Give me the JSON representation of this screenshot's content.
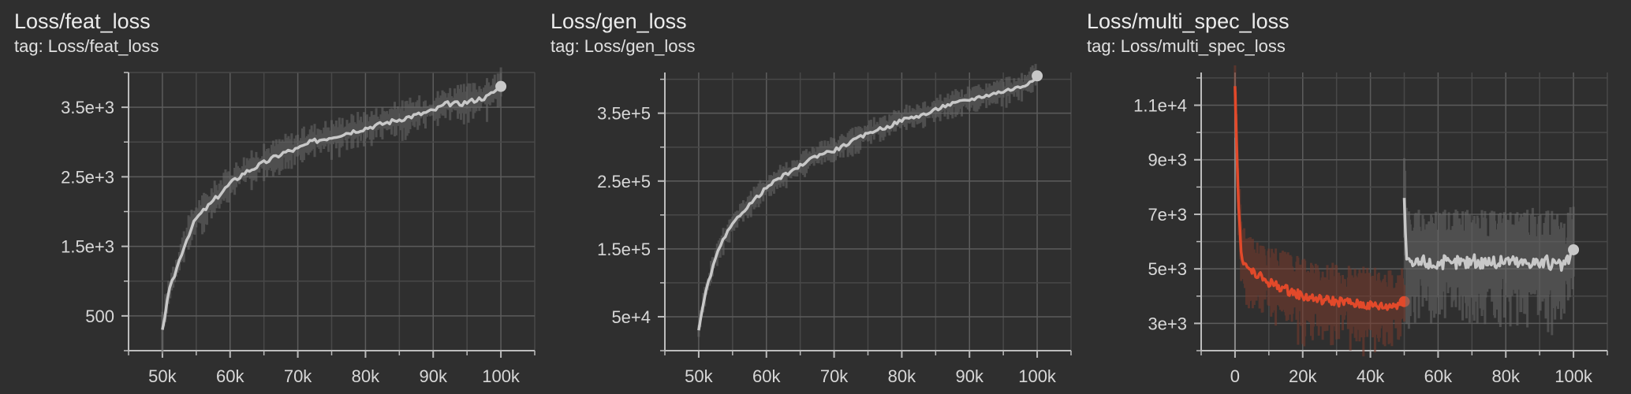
{
  "panels": [
    {
      "title": "Loss/feat_loss",
      "tag": "tag: Loss/feat_loss",
      "chart_data": {
        "type": "line",
        "xlim": [
          45000,
          105000
        ],
        "ylim": [
          0,
          4000
        ],
        "xticks": [
          50000,
          60000,
          70000,
          80000,
          90000,
          100000
        ],
        "xtick_labels": [
          "50k",
          "60k",
          "70k",
          "80k",
          "90k",
          "100k"
        ],
        "yticks": [
          500,
          1500,
          2500,
          3500
        ],
        "ytick_labels": [
          "500",
          "1.5e+3",
          "2.5e+3",
          "3.5e+3"
        ],
        "grid": true,
        "series": [
          {
            "color": "#c8c8c8",
            "raw_color": "#6a6a6a",
            "x": [
              50000,
              51000,
              52000,
              53000,
              54000,
              55000,
              56000,
              58000,
              60000,
              62000,
              64000,
              66000,
              68000,
              70000,
              72000,
              74000,
              76000,
              78000,
              80000,
              82000,
              84000,
              86000,
              88000,
              90000,
              92000,
              94000,
              96000,
              98000,
              100000
            ],
            "y": [
              300,
              850,
              1150,
              1450,
              1700,
              1900,
              2000,
              2200,
              2400,
              2550,
              2650,
              2750,
              2850,
              2900,
              3000,
              3050,
              3100,
              3150,
              3200,
              3250,
              3300,
              3350,
              3400,
              3450,
              3550,
              3550,
              3600,
              3650,
              3800
            ],
            "band": 200
          }
        ]
      }
    },
    {
      "title": "Loss/gen_loss",
      "tag": "tag: Loss/gen_loss",
      "chart_data": {
        "type": "line",
        "xlim": [
          45000,
          105000
        ],
        "ylim": [
          0,
          410000
        ],
        "xticks": [
          50000,
          60000,
          70000,
          80000,
          90000,
          100000
        ],
        "xtick_labels": [
          "50k",
          "60k",
          "70k",
          "80k",
          "90k",
          "100k"
        ],
        "yticks": [
          50000,
          150000,
          250000,
          350000
        ],
        "ytick_labels": [
          "5e+4",
          "1.5e+5",
          "2.5e+5",
          "3.5e+5"
        ],
        "grid": true,
        "series": [
          {
            "color": "#c8c8c8",
            "raw_color": "#6a6a6a",
            "x": [
              50000,
              51000,
              52000,
              53000,
              54000,
              55000,
              56000,
              58000,
              60000,
              62000,
              64000,
              66000,
              68000,
              70000,
              72000,
              74000,
              76000,
              78000,
              80000,
              82000,
              84000,
              86000,
              88000,
              90000,
              92000,
              94000,
              96000,
              98000,
              100000
            ],
            "y": [
              30000,
              85000,
              120000,
              150000,
              170000,
              185000,
              200000,
              220000,
              240000,
              255000,
              265000,
              280000,
              290000,
              295000,
              305000,
              315000,
              325000,
              330000,
              340000,
              345000,
              350000,
              360000,
              365000,
              370000,
              375000,
              380000,
              385000,
              390000,
              405000
            ],
            "band": 15000
          }
        ]
      }
    },
    {
      "title": "Loss/multi_spec_loss",
      "tag": "tag: Loss/multi_spec_loss",
      "chart_data": {
        "type": "line",
        "xlim": [
          -10000,
          110000
        ],
        "ylim": [
          2000,
          12200
        ],
        "xticks": [
          0,
          20000,
          40000,
          60000,
          80000,
          100000
        ],
        "xtick_labels": [
          "0",
          "20k",
          "40k",
          "60k",
          "80k",
          "100k"
        ],
        "yticks": [
          3000,
          5000,
          7000,
          9000,
          11000
        ],
        "ytick_labels": [
          "3e+3",
          "5e+3",
          "7e+3",
          "9e+3",
          "1.1e+4"
        ],
        "grid": true,
        "series": [
          {
            "color": "#e2492a",
            "raw_color": "#7a3a2c",
            "x": [
              0,
              500,
              1000,
              1500,
              2000,
              3000,
              4000,
              5000,
              6000,
              8000,
              10000,
              12000,
              14000,
              16000,
              18000,
              20000,
              22000,
              24000,
              26000,
              28000,
              30000,
              32000,
              34000,
              36000,
              38000,
              40000,
              42000,
              44000,
              46000,
              48000,
              50000
            ],
            "y": [
              11700,
              9500,
              7500,
              6200,
              5500,
              5100,
              5000,
              4900,
              4800,
              4650,
              4500,
              4400,
              4300,
              4200,
              4100,
              4000,
              3950,
              3900,
              3850,
              3850,
              3800,
              3800,
              3750,
              3700,
              3700,
              3650,
              3650,
              3600,
              3650,
              3700,
              3800
            ],
            "band": 1000
          },
          {
            "color": "#c8c8c8",
            "raw_color": "#6a6a6a",
            "x": [
              50000,
              50500,
              51000,
              52000,
              54000,
              56000,
              58000,
              60000,
              62000,
              64000,
              66000,
              68000,
              70000,
              72000,
              74000,
              76000,
              78000,
              80000,
              82000,
              84000,
              86000,
              88000,
              90000,
              92000,
              94000,
              96000,
              98000,
              100000
            ],
            "y": [
              7600,
              5600,
              5200,
              5100,
              5200,
              5300,
              5150,
              5200,
              5250,
              5100,
              5300,
              5200,
              5350,
              5200,
              5300,
              5250,
              5200,
              5350,
              5300,
              5200,
              5250,
              5300,
              5200,
              5250,
              5150,
              5100,
              5200,
              5700
            ],
            "band": 1400
          }
        ]
      }
    }
  ]
}
